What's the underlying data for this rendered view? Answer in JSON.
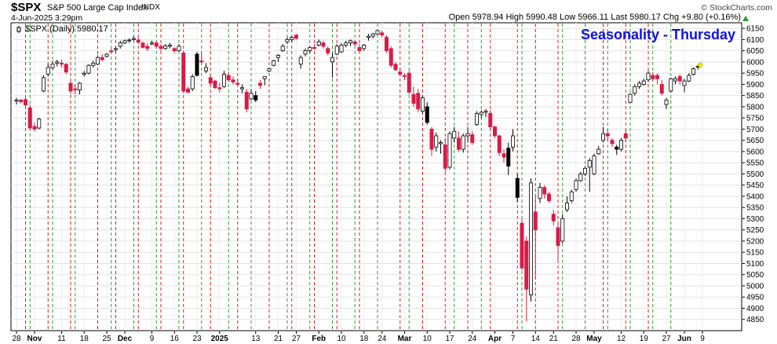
{
  "header": {
    "symbol": "$SPX",
    "description": "S&P 500 Large Cap Index",
    "exchange": "INDX",
    "datetime": "4-Jun-2025 3:29pm",
    "brand": "© StockCharts.com",
    "open_label": "Open",
    "open": "5978.94",
    "high_label": "High",
    "high": "5990.48",
    "low_label": "Low",
    "low": "5966.11",
    "last_label": "Last",
    "last": "5980.17",
    "chg_label": "Chg",
    "chg": "+9.80 (+0.16%)"
  },
  "colors": {
    "up": "#ffffff",
    "down": "#d81b47",
    "green_line": "#2e9a2e",
    "red_line": "#d81b1b",
    "title": "#1010e0"
  },
  "chart_data": {
    "type": "candlestick",
    "title": "Seasonality - Thursday",
    "legend": "$SPX (Daily) 5980.17",
    "ylim": [
      4800,
      6175
    ],
    "y_ticks": [
      4850,
      4900,
      4950,
      5000,
      5050,
      5100,
      5150,
      5200,
      5250,
      5300,
      5350,
      5400,
      5450,
      5500,
      5550,
      5600,
      5650,
      5700,
      5750,
      5800,
      5850,
      5900,
      5950,
      6000,
      6050,
      6100,
      6150
    ],
    "x_ticks": [
      {
        "label": "28",
        "i": 0
      },
      {
        "label": "Nov",
        "i": 4,
        "bold": true
      },
      {
        "label": "11",
        "i": 10
      },
      {
        "label": "18",
        "i": 15
      },
      {
        "label": "25",
        "i": 20
      },
      {
        "label": "Dec",
        "i": 24,
        "bold": true
      },
      {
        "label": "9",
        "i": 30
      },
      {
        "label": "16",
        "i": 35
      },
      {
        "label": "23",
        "i": 40
      },
      {
        "label": "2025",
        "i": 45,
        "bold": true
      },
      {
        "label": "13",
        "i": 53
      },
      {
        "label": "21",
        "i": 58
      },
      {
        "label": "27",
        "i": 62
      },
      {
        "label": "Feb",
        "i": 67,
        "bold": true
      },
      {
        "label": "10",
        "i": 72
      },
      {
        "label": "18",
        "i": 77
      },
      {
        "label": "24",
        "i": 81
      },
      {
        "label": "Mar",
        "i": 86,
        "bold": true
      },
      {
        "label": "10",
        "i": 91
      },
      {
        "label": "17",
        "i": 96
      },
      {
        "label": "24",
        "i": 101
      },
      {
        "label": "Apr",
        "i": 106,
        "bold": true
      },
      {
        "label": "7",
        "i": 110
      },
      {
        "label": "14",
        "i": 115
      },
      {
        "label": "21",
        "i": 119
      },
      {
        "label": "28",
        "i": 124
      },
      {
        "label": "May",
        "i": 128,
        "bold": true
      },
      {
        "label": "12",
        "i": 134
      },
      {
        "label": "19",
        "i": 139
      },
      {
        "label": "27",
        "i": 144
      },
      {
        "label": "Jun",
        "i": 148,
        "bold": true
      },
      {
        "label": "9",
        "i": 152
      }
    ],
    "green_lines": [
      3,
      8,
      13,
      21,
      26,
      31,
      36,
      41,
      47,
      52,
      60,
      65,
      70,
      75,
      80,
      87,
      97,
      103,
      112,
      121,
      126,
      131,
      136,
      141,
      145
    ],
    "red_lines": [
      2,
      7,
      12,
      18,
      22,
      27,
      32,
      37,
      43,
      49,
      56,
      61,
      66,
      71,
      76,
      85,
      90,
      95,
      100,
      105,
      111,
      115,
      120,
      130,
      135,
      140
    ],
    "candles": [
      {
        "o": 5825,
        "h": 5840,
        "l": 5810,
        "c": 5830
      },
      {
        "o": 5830,
        "h": 5835,
        "l": 5815,
        "c": 5822
      },
      {
        "o": 5832,
        "h": 5840,
        "l": 5800,
        "c": 5808
      },
      {
        "o": 5795,
        "h": 5810,
        "l": 5700,
        "c": 5705
      },
      {
        "o": 5712,
        "h": 5730,
        "l": 5690,
        "c": 5700
      },
      {
        "o": 5705,
        "h": 5750,
        "l": 5700,
        "c": 5745
      },
      {
        "o": 5870,
        "h": 5940,
        "l": 5865,
        "c": 5930
      },
      {
        "o": 5945,
        "h": 5990,
        "l": 5935,
        "c": 5975
      },
      {
        "o": 5975,
        "h": 6005,
        "l": 5965,
        "c": 5990
      },
      {
        "o": 5995,
        "h": 6010,
        "l": 5980,
        "c": 6000
      },
      {
        "o": 5995,
        "h": 6010,
        "l": 5975,
        "c": 5990
      },
      {
        "o": 5990,
        "h": 5995,
        "l": 5945,
        "c": 5955
      },
      {
        "o": 5905,
        "h": 5925,
        "l": 5855,
        "c": 5870
      },
      {
        "o": 5880,
        "h": 5900,
        "l": 5855,
        "c": 5875
      },
      {
        "o": 5875,
        "h": 5910,
        "l": 5855,
        "c": 5905
      },
      {
        "o": 5945,
        "h": 5960,
        "l": 5935,
        "c": 5950
      },
      {
        "o": 5950,
        "h": 5990,
        "l": 5945,
        "c": 5985
      },
      {
        "o": 5985,
        "h": 6005,
        "l": 5975,
        "c": 5995
      },
      {
        "o": 5990,
        "h": 6030,
        "l": 5985,
        "c": 6020
      },
      {
        "o": 6020,
        "h": 6035,
        "l": 6005,
        "c": 6010
      },
      {
        "o": 6025,
        "h": 6040,
        "l": 6020,
        "c": 6035
      },
      {
        "o": 6050,
        "h": 6060,
        "l": 6040,
        "c": 6045
      },
      {
        "o": 6055,
        "h": 6065,
        "l": 6045,
        "c": 6060
      },
      {
        "o": 6070,
        "h": 6095,
        "l": 6060,
        "c": 6085
      },
      {
        "o": 6085,
        "h": 6100,
        "l": 6080,
        "c": 6095
      },
      {
        "o": 6095,
        "h": 6105,
        "l": 6085,
        "c": 6098
      },
      {
        "o": 6100,
        "h": 6115,
        "l": 6095,
        "c": 6105
      },
      {
        "o": 6098,
        "h": 6110,
        "l": 6080,
        "c": 6088
      },
      {
        "o": 6085,
        "h": 6090,
        "l": 6060,
        "c": 6065
      },
      {
        "o": 6070,
        "h": 6085,
        "l": 6050,
        "c": 6060
      },
      {
        "o": 6080,
        "h": 6095,
        "l": 6075,
        "c": 6085
      },
      {
        "o": 6085,
        "h": 6095,
        "l": 6060,
        "c": 6070
      },
      {
        "o": 6070,
        "h": 6080,
        "l": 6050,
        "c": 6060
      },
      {
        "o": 6060,
        "h": 6080,
        "l": 6055,
        "c": 6072
      },
      {
        "o": 6070,
        "h": 6085,
        "l": 6060,
        "c": 6075
      },
      {
        "o": 6060,
        "h": 6065,
        "l": 6040,
        "c": 6050
      },
      {
        "o": 6050,
        "h": 6080,
        "l": 6045,
        "c": 6070
      },
      {
        "o": 6040,
        "h": 6050,
        "l": 5860,
        "c": 5870
      },
      {
        "o": 5880,
        "h": 5890,
        "l": 5860,
        "c": 5865
      },
      {
        "o": 5880,
        "h": 5945,
        "l": 5870,
        "c": 5935
      },
      {
        "o": 5940,
        "h": 6045,
        "l": 5935,
        "c": 6035
      },
      {
        "o": 6005,
        "h": 6045,
        "l": 5990,
        "c": 6000
      },
      {
        "o": 5960,
        "h": 5995,
        "l": 5950,
        "c": 5975
      },
      {
        "o": 5930,
        "h": 5940,
        "l": 5895,
        "c": 5905
      },
      {
        "o": 5915,
        "h": 5920,
        "l": 5880,
        "c": 5885
      },
      {
        "o": 5885,
        "h": 5905,
        "l": 5865,
        "c": 5880
      },
      {
        "o": 5890,
        "h": 5960,
        "l": 5885,
        "c": 5945
      },
      {
        "o": 5940,
        "h": 5955,
        "l": 5910,
        "c": 5920
      },
      {
        "o": 5920,
        "h": 5935,
        "l": 5900,
        "c": 5910
      },
      {
        "o": 5905,
        "h": 5925,
        "l": 5890,
        "c": 5900
      },
      {
        "o": 5880,
        "h": 5900,
        "l": 5860,
        "c": 5885
      },
      {
        "o": 5865,
        "h": 5880,
        "l": 5775,
        "c": 5790
      },
      {
        "o": 5835,
        "h": 5880,
        "l": 5830,
        "c": 5860
      },
      {
        "o": 5850,
        "h": 5870,
        "l": 5820,
        "c": 5830
      },
      {
        "o": 5905,
        "h": 5920,
        "l": 5880,
        "c": 5895
      },
      {
        "o": 5925,
        "h": 5935,
        "l": 5895,
        "c": 5935
      },
      {
        "o": 5960,
        "h": 5975,
        "l": 5955,
        "c": 5970
      },
      {
        "o": 5985,
        "h": 6010,
        "l": 5980,
        "c": 6005
      },
      {
        "o": 6020,
        "h": 6035,
        "l": 6000,
        "c": 6030
      },
      {
        "o": 6050,
        "h": 6080,
        "l": 6045,
        "c": 6070
      },
      {
        "o": 6090,
        "h": 6110,
        "l": 6080,
        "c": 6100
      },
      {
        "o": 6100,
        "h": 6115,
        "l": 6090,
        "c": 6110
      },
      {
        "o": 6120,
        "h": 6125,
        "l": 6100,
        "c": 6105
      },
      {
        "o": 5990,
        "h": 6030,
        "l": 5970,
        "c": 6020
      },
      {
        "o": 6035,
        "h": 6060,
        "l": 6025,
        "c": 6050
      },
      {
        "o": 6050,
        "h": 6070,
        "l": 6040,
        "c": 6065
      },
      {
        "o": 6065,
        "h": 6080,
        "l": 6055,
        "c": 6060
      },
      {
        "o": 6075,
        "h": 6100,
        "l": 6070,
        "c": 6090
      },
      {
        "o": 6085,
        "h": 6095,
        "l": 6060,
        "c": 6070
      },
      {
        "o": 6060,
        "h": 6070,
        "l": 6030,
        "c": 6040
      },
      {
        "o": 6000,
        "h": 6040,
        "l": 5930,
        "c": 6020
      },
      {
        "o": 6035,
        "h": 6080,
        "l": 6030,
        "c": 6070
      },
      {
        "o": 6045,
        "h": 6085,
        "l": 6040,
        "c": 6075
      },
      {
        "o": 6075,
        "h": 6095,
        "l": 6065,
        "c": 6085
      },
      {
        "o": 6085,
        "h": 6100,
        "l": 6070,
        "c": 6095
      },
      {
        "o": 6090,
        "h": 6095,
        "l": 6070,
        "c": 6080
      },
      {
        "o": 6065,
        "h": 6080,
        "l": 6040,
        "c": 6050
      },
      {
        "o": 6060,
        "h": 6080,
        "l": 6050,
        "c": 6075
      },
      {
        "o": 6110,
        "h": 6125,
        "l": 6095,
        "c": 6115
      },
      {
        "o": 6115,
        "h": 6130,
        "l": 6105,
        "c": 6125
      },
      {
        "o": 6125,
        "h": 6145,
        "l": 6120,
        "c": 6140
      },
      {
        "o": 6130,
        "h": 6140,
        "l": 6110,
        "c": 6120
      },
      {
        "o": 6110,
        "h": 6120,
        "l": 6040,
        "c": 6050
      },
      {
        "o": 6060,
        "h": 6070,
        "l": 5975,
        "c": 5985
      },
      {
        "o": 5990,
        "h": 6000,
        "l": 5960,
        "c": 5965
      },
      {
        "o": 5955,
        "h": 5975,
        "l": 5935,
        "c": 5945
      },
      {
        "o": 5940,
        "h": 5950,
        "l": 5920,
        "c": 5935
      },
      {
        "o": 5950,
        "h": 5960,
        "l": 5855,
        "c": 5865
      },
      {
        "o": 5855,
        "h": 5890,
        "l": 5800,
        "c": 5815
      },
      {
        "o": 5860,
        "h": 5880,
        "l": 5775,
        "c": 5790
      },
      {
        "o": 5780,
        "h": 5850,
        "l": 5770,
        "c": 5840
      },
      {
        "o": 5800,
        "h": 5820,
        "l": 5720,
        "c": 5730
      },
      {
        "o": 5700,
        "h": 5710,
        "l": 5580,
        "c": 5610
      },
      {
        "o": 5620,
        "h": 5685,
        "l": 5600,
        "c": 5670
      },
      {
        "o": 5635,
        "h": 5650,
        "l": 5590,
        "c": 5640
      },
      {
        "o": 5630,
        "h": 5660,
        "l": 5510,
        "c": 5525
      },
      {
        "o": 5530,
        "h": 5690,
        "l": 5520,
        "c": 5680
      },
      {
        "o": 5660,
        "h": 5710,
        "l": 5640,
        "c": 5690
      },
      {
        "o": 5660,
        "h": 5690,
        "l": 5600,
        "c": 5610
      },
      {
        "o": 5610,
        "h": 5680,
        "l": 5595,
        "c": 5670
      },
      {
        "o": 5670,
        "h": 5710,
        "l": 5640,
        "c": 5680
      },
      {
        "o": 5675,
        "h": 5690,
        "l": 5630,
        "c": 5640
      },
      {
        "o": 5720,
        "h": 5780,
        "l": 5715,
        "c": 5770
      },
      {
        "o": 5765,
        "h": 5785,
        "l": 5750,
        "c": 5775
      },
      {
        "o": 5775,
        "h": 5790,
        "l": 5755,
        "c": 5780
      },
      {
        "o": 5770,
        "h": 5785,
        "l": 5700,
        "c": 5710
      },
      {
        "o": 5710,
        "h": 5715,
        "l": 5660,
        "c": 5670
      },
      {
        "o": 5670,
        "h": 5675,
        "l": 5580,
        "c": 5595
      },
      {
        "o": 5590,
        "h": 5610,
        "l": 5550,
        "c": 5575
      },
      {
        "o": 5535,
        "h": 5640,
        "l": 5495,
        "c": 5615
      },
      {
        "o": 5620,
        "h": 5700,
        "l": 5600,
        "c": 5670
      },
      {
        "o": 5480,
        "h": 5500,
        "l": 5375,
        "c": 5395
      },
      {
        "o": 5280,
        "h": 5300,
        "l": 5070,
        "c": 5080
      },
      {
        "o": 5200,
        "h": 5220,
        "l": 4840,
        "c": 4985
      },
      {
        "o": 4960,
        "h": 5480,
        "l": 4930,
        "c": 5460
      },
      {
        "o": 5330,
        "h": 5400,
        "l": 5030,
        "c": 5250
      },
      {
        "o": 5390,
        "h": 5460,
        "l": 5370,
        "c": 5440
      },
      {
        "o": 5440,
        "h": 5450,
        "l": 5390,
        "c": 5410
      },
      {
        "o": 5410,
        "h": 5420,
        "l": 5370,
        "c": 5380
      },
      {
        "o": 5320,
        "h": 5340,
        "l": 5270,
        "c": 5290
      },
      {
        "o": 5260,
        "h": 5290,
        "l": 5110,
        "c": 5180
      },
      {
        "o": 5200,
        "h": 5320,
        "l": 5190,
        "c": 5300
      },
      {
        "o": 5340,
        "h": 5400,
        "l": 5330,
        "c": 5370
      },
      {
        "o": 5380,
        "h": 5430,
        "l": 5370,
        "c": 5420
      },
      {
        "o": 5430,
        "h": 5480,
        "l": 5420,
        "c": 5470
      },
      {
        "o": 5470,
        "h": 5510,
        "l": 5465,
        "c": 5500
      },
      {
        "o": 5500,
        "h": 5535,
        "l": 5490,
        "c": 5525
      },
      {
        "o": 5530,
        "h": 5570,
        "l": 5420,
        "c": 5560
      },
      {
        "o": 5500,
        "h": 5590,
        "l": 5495,
        "c": 5580
      },
      {
        "o": 5590,
        "h": 5625,
        "l": 5585,
        "c": 5610
      },
      {
        "o": 5650,
        "h": 5710,
        "l": 5640,
        "c": 5680
      },
      {
        "o": 5680,
        "h": 5700,
        "l": 5650,
        "c": 5670
      },
      {
        "o": 5650,
        "h": 5660,
        "l": 5620,
        "c": 5635
      },
      {
        "o": 5620,
        "h": 5630,
        "l": 5585,
        "c": 5610
      },
      {
        "o": 5610,
        "h": 5660,
        "l": 5600,
        "c": 5650
      },
      {
        "o": 5680,
        "h": 5700,
        "l": 5640,
        "c": 5660
      },
      {
        "o": 5820,
        "h": 5860,
        "l": 5815,
        "c": 5855
      },
      {
        "o": 5860,
        "h": 5900,
        "l": 5850,
        "c": 5890
      },
      {
        "o": 5890,
        "h": 5915,
        "l": 5880,
        "c": 5905
      },
      {
        "o": 5900,
        "h": 5925,
        "l": 5895,
        "c": 5915
      },
      {
        "o": 5920,
        "h": 5960,
        "l": 5910,
        "c": 5950
      },
      {
        "o": 5940,
        "h": 5955,
        "l": 5915,
        "c": 5925
      },
      {
        "o": 5940,
        "h": 5950,
        "l": 5900,
        "c": 5925
      },
      {
        "o": 5900,
        "h": 5920,
        "l": 5850,
        "c": 5860
      },
      {
        "o": 5810,
        "h": 5840,
        "l": 5790,
        "c": 5830
      },
      {
        "o": 5870,
        "h": 5930,
        "l": 5865,
        "c": 5925
      },
      {
        "o": 5915,
        "h": 5935,
        "l": 5900,
        "c": 5925
      },
      {
        "o": 5935,
        "h": 5945,
        "l": 5900,
        "c": 5915
      },
      {
        "o": 5895,
        "h": 5925,
        "l": 5865,
        "c": 5915
      },
      {
        "o": 5915,
        "h": 5950,
        "l": 5910,
        "c": 5940
      },
      {
        "o": 5945,
        "h": 5975,
        "l": 5940,
        "c": 5970
      },
      {
        "o": 5979,
        "h": 5990,
        "l": 5966,
        "c": 5980
      }
    ],
    "dot_indices": [
      40,
      53,
      91,
      109,
      111,
      133
    ]
  }
}
